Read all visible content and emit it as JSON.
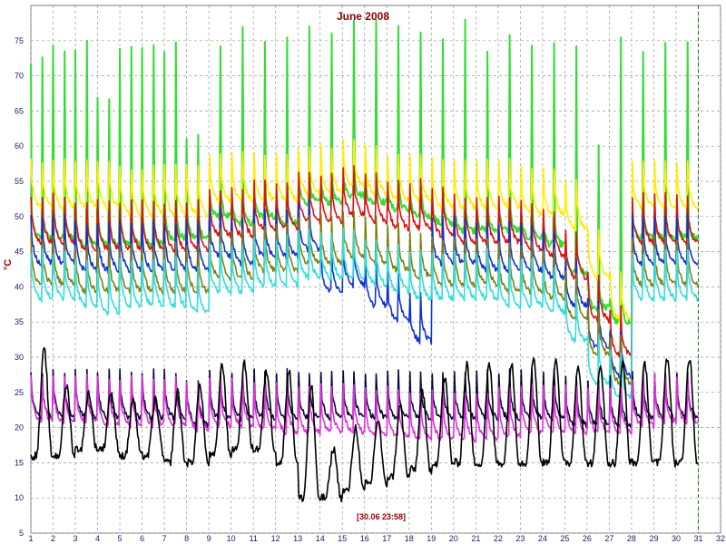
{
  "chart_data": {
    "type": "line",
    "title": "June 2008",
    "ylabel": "°C",
    "footer": "[30.06 23:58]",
    "xlim": [
      1,
      32
    ],
    "ylim": [
      5,
      80
    ],
    "grid": true,
    "x_ticks": [
      1,
      2,
      3,
      4,
      5,
      6,
      7,
      8,
      9,
      10,
      11,
      12,
      13,
      14,
      15,
      16,
      17,
      18,
      19,
      20,
      21,
      22,
      23,
      24,
      25,
      26,
      27,
      28,
      29,
      30,
      31,
      32
    ],
    "y_ticks": [
      5,
      10,
      15,
      20,
      25,
      30,
      35,
      40,
      45,
      50,
      55,
      60,
      65,
      70,
      75
    ],
    "x_tick_labels": [
      "1",
      "2",
      "3",
      "4",
      "5",
      "6",
      "7",
      "8",
      "9",
      "10",
      "11",
      "12",
      "13",
      "14",
      "15",
      "16",
      "17",
      "18",
      "19",
      "20",
      "21",
      "22",
      "23",
      "24",
      "25",
      "26",
      "27",
      "28",
      "29",
      "30",
      "31",
      "32"
    ],
    "y_tick_labels": [
      "5",
      "10",
      "15",
      "20",
      "25",
      "30",
      "35",
      "40",
      "45",
      "50",
      "55",
      "60",
      "65",
      "70",
      "75"
    ],
    "current_time_marker_x": 31.0,
    "series": [
      {
        "color": "#33dd33",
        "base": [
          50,
          50,
          49,
          49,
          49,
          49,
          50,
          50,
          53,
          52,
          53,
          52,
          55,
          55,
          56,
          55,
          54,
          53,
          52,
          51,
          51,
          51,
          50,
          49,
          45,
          40,
          38,
          50,
          50,
          50,
          50
        ],
        "spike_peak": [
          73,
          75,
          75,
          68,
          75,
          75,
          75,
          63,
          75,
          77,
          75,
          77,
          78,
          78,
          78,
          78,
          78,
          78,
          76,
          78,
          75,
          76,
          75,
          75,
          75,
          61,
          77,
          75,
          75,
          75,
          75
        ]
      },
      {
        "color": "#ffee00",
        "base": [
          54,
          54,
          54,
          54,
          53,
          53,
          53,
          53,
          55,
          55,
          55,
          55,
          56,
          56,
          57,
          56,
          55,
          55,
          54,
          54,
          54,
          54,
          53,
          53,
          51,
          44,
          38,
          54,
          54,
          54,
          54
        ]
      },
      {
        "color": "#dd1111",
        "base": [
          49,
          49,
          48,
          48,
          48,
          48,
          48,
          48,
          50,
          50,
          51,
          51,
          52,
          52,
          53,
          52,
          51,
          51,
          50,
          49,
          49,
          49,
          48,
          47,
          44,
          38,
          33,
          49,
          49,
          49,
          49
        ]
      },
      {
        "color": "#1133cc",
        "base": [
          46,
          46,
          45,
          45,
          45,
          45,
          45,
          45,
          47,
          46,
          47,
          47,
          48,
          42,
          43,
          40,
          38,
          35,
          46,
          46,
          45,
          45,
          45,
          44,
          40,
          34,
          30,
          46,
          46,
          46,
          46
        ]
      },
      {
        "color": "#808010",
        "base": [
          43,
          43,
          42,
          42,
          42,
          42,
          42,
          42,
          44,
          44,
          45,
          45,
          46,
          46,
          47,
          46,
          45,
          44,
          43,
          43,
          43,
          42,
          42,
          41,
          38,
          33,
          29,
          43,
          43,
          43,
          43
        ]
      },
      {
        "color": "#33dddd",
        "base": [
          41,
          41,
          40,
          39,
          40,
          40,
          40,
          39,
          42,
          42,
          43,
          43,
          44,
          44,
          44,
          43,
          42,
          41,
          41,
          41,
          41,
          40,
          40,
          39,
          35,
          29,
          27,
          41,
          41,
          41,
          41
        ]
      },
      {
        "color": "#0a0a3a",
        "base": [
          24,
          24,
          24,
          24,
          24,
          24,
          24,
          23,
          24,
          24,
          24,
          24,
          24,
          24,
          24,
          24,
          24,
          24,
          24,
          24,
          24,
          24,
          24,
          24,
          23,
          23,
          23,
          24,
          24,
          24,
          24
        ]
      },
      {
        "color": "#dd33dd",
        "base": [
          23.5,
          23.5,
          23.5,
          23,
          23,
          23,
          23,
          22.5,
          23,
          23,
          22.5,
          22,
          22,
          22,
          22,
          21.5,
          21.5,
          21,
          21,
          21,
          21,
          21.5,
          22,
          22,
          22,
          22,
          22,
          23,
          23.5,
          23.5,
          23.5
        ]
      },
      {
        "color": "#000000",
        "daily_min": [
          16,
          16,
          17,
          17,
          16,
          16,
          15,
          15,
          16,
          17,
          17,
          15,
          10,
          10,
          11,
          12,
          13,
          14,
          15,
          15,
          15,
          15,
          15,
          15,
          15,
          15,
          15,
          15,
          15,
          15,
          15
        ],
        "daily_max": [
          31,
          26,
          25,
          25,
          24,
          24,
          25,
          26,
          29,
          29,
          28,
          28,
          26,
          17,
          20,
          21,
          23,
          25,
          27,
          29,
          29,
          29,
          30,
          30,
          29,
          29,
          29,
          29,
          30,
          30,
          30
        ]
      }
    ]
  }
}
